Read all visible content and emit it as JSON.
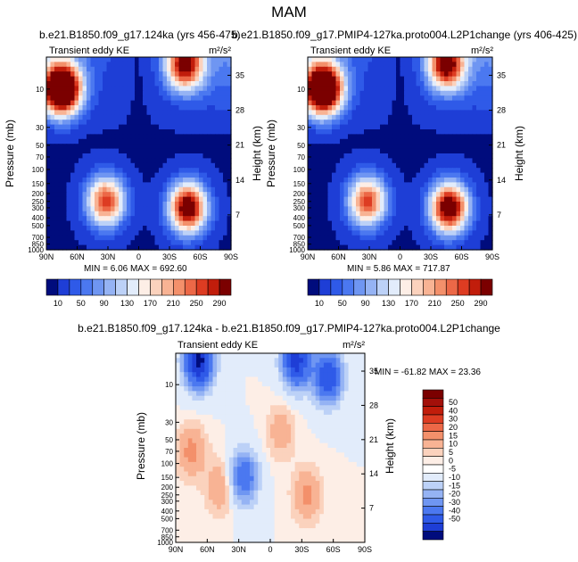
{
  "figure": {
    "title": "MAM",
    "units_label": "m²/s²"
  },
  "colors": {
    "diff_scale": [
      "#000c7d",
      "#0f24a6",
      "#1e3ed6",
      "#2f5ae8",
      "#4b78f0",
      "#6f96f2",
      "#95b3f4",
      "#bcd1f7",
      "#e2ecfb",
      "#ffffff",
      "#fdeee6",
      "#fbd2bd",
      "#f8b394",
      "#f3906b",
      "#ec6847",
      "#dd3c22",
      "#c11d0b",
      "#a3100a",
      "#7b0000"
    ],
    "abs_scale": [
      "#000c7d",
      "#1e3ed6",
      "#2f5ae8",
      "#4b78f0",
      "#6f96f2",
      "#95b3f4",
      "#bcd1f7",
      "#e2ecfb",
      "#fdeee6",
      "#fbd2bd",
      "#f8b394",
      "#f3906b",
      "#ec6847",
      "#dd3c22",
      "#c11d0b",
      "#7b0000"
    ]
  },
  "chart_data": [
    {
      "type": "heatmap",
      "id": "panel_a",
      "title": "b.e21.B1850.f09_g17.124ka (yrs 456-475)",
      "subtitle": "Transient eddy KE",
      "units": "m²/s²",
      "xlabel": "",
      "ylabel": "Pressure (mb)",
      "ylabel_right": "Height (km)",
      "x_ticks": [
        "90N",
        "60N",
        "30N",
        "0",
        "30S",
        "60S",
        "90S"
      ],
      "x_range": [
        90,
        -90
      ],
      "y_ticks": [
        "10",
        "30",
        "50",
        "70",
        "100",
        "150",
        "200",
        "250",
        "300",
        "400",
        "500",
        "700",
        "850",
        "1000"
      ],
      "y_range_mb": [
        1000,
        4
      ],
      "right_ticks": [
        "35",
        "28",
        "21",
        "14",
        "7"
      ],
      "min_label": "MIN =  6.06  MAX = 692.60",
      "min": 6.06,
      "max": 692.6,
      "features": [
        {
          "lat": 75,
          "p": 10,
          "amp": 450,
          "desc": "NH polar stratospheric max"
        },
        {
          "lat": 32,
          "p": 250,
          "amp": 260,
          "desc": "NH subtropical jet eddy max"
        },
        {
          "lat": -48,
          "p": 300,
          "amp": 330,
          "desc": "SH storm track max"
        },
        {
          "lat": -45,
          "p": 5,
          "amp": 290,
          "desc": "SH upper stratosphere max"
        }
      ],
      "colorbar_labels": [
        "10",
        "50",
        "90",
        "130",
        "170",
        "210",
        "250",
        "290"
      ]
    },
    {
      "type": "heatmap",
      "id": "panel_b",
      "title": "b.e21.B1850.f09_g17.PMIP4-127ka.proto004.L2P1change (yrs 406-425)",
      "subtitle": "Transient eddy KE",
      "units": "m²/s²",
      "xlabel": "",
      "ylabel": "Pressure (mb)",
      "ylabel_right": "Height (km)",
      "x_ticks": [
        "90N",
        "60N",
        "30N",
        "0",
        "30S",
        "60S",
        "90S"
      ],
      "x_range": [
        90,
        -90
      ],
      "y_ticks": [
        "10",
        "30",
        "50",
        "70",
        "100",
        "150",
        "200",
        "250",
        "300",
        "400",
        "500",
        "700",
        "850",
        "1000"
      ],
      "y_range_mb": [
        1000,
        4
      ],
      "right_ticks": [
        "35",
        "28",
        "21",
        "14",
        "7"
      ],
      "min_label": "MIN =  5.86  MAX = 717.87",
      "min": 5.86,
      "max": 717.87,
      "features": [
        {
          "lat": 75,
          "p": 10,
          "amp": 450,
          "desc": "NH polar stratospheric max"
        },
        {
          "lat": 32,
          "p": 250,
          "amp": 255,
          "desc": "NH subtropical jet eddy max"
        },
        {
          "lat": -48,
          "p": 300,
          "amp": 340,
          "desc": "SH storm track max"
        },
        {
          "lat": -45,
          "p": 5,
          "amp": 300,
          "desc": "SH upper stratosphere max"
        }
      ],
      "colorbar_labels": [
        "10",
        "50",
        "90",
        "130",
        "170",
        "210",
        "250",
        "290"
      ]
    },
    {
      "type": "heatmap",
      "id": "panel_diff",
      "title": "b.e21.B1850.f09_g17.124ka - b.e21.B1850.f09_g17.PMIP4-127ka.proto004.L2P1change",
      "subtitle": "Transient eddy KE",
      "units": "m²/s²",
      "xlabel": "",
      "ylabel": "Pressure (mb)",
      "ylabel_right": "Height (km)",
      "x_ticks": [
        "90N",
        "60N",
        "30N",
        "0",
        "30S",
        "60S",
        "90S"
      ],
      "x_range": [
        90,
        -90
      ],
      "y_ticks": [
        "10",
        "30",
        "50",
        "70",
        "100",
        "150",
        "200",
        "250",
        "300",
        "400",
        "500",
        "700",
        "850",
        "1000"
      ],
      "y_range_mb": [
        1000,
        4
      ],
      "right_ticks": [
        "35",
        "28",
        "21",
        "14",
        "7"
      ],
      "min_label": "MIN = -61.82  MAX =  23.36",
      "min": -61.82,
      "max": 23.36,
      "features": [
        {
          "lat": 68,
          "p": 5,
          "amp": -55,
          "desc": "NH polar upper negative"
        },
        {
          "lat": -25,
          "p": 5,
          "amp": -45,
          "desc": "SH subtropical upper negative"
        },
        {
          "lat": -55,
          "p": 8,
          "amp": -40,
          "desc": "SH mid-lat upper negative"
        },
        {
          "lat": 25,
          "p": 150,
          "amp": -28,
          "desc": "NH subtropical negative"
        },
        {
          "lat": 75,
          "p": 70,
          "amp": 12,
          "desc": "NH polar positive"
        },
        {
          "lat": 48,
          "p": 200,
          "amp": 10,
          "desc": "NH mid-lat positive"
        },
        {
          "lat": -35,
          "p": 250,
          "amp": 12,
          "desc": "SH positive"
        },
        {
          "lat": -10,
          "p": 40,
          "amp": 8,
          "desc": "tropical stratosphere positive"
        }
      ],
      "colorbar_labels": [
        "50",
        "40",
        "30",
        "20",
        "15",
        "10",
        "5",
        "0",
        "-5",
        "-10",
        "-15",
        "-20",
        "-30",
        "-40",
        "-50"
      ]
    }
  ]
}
